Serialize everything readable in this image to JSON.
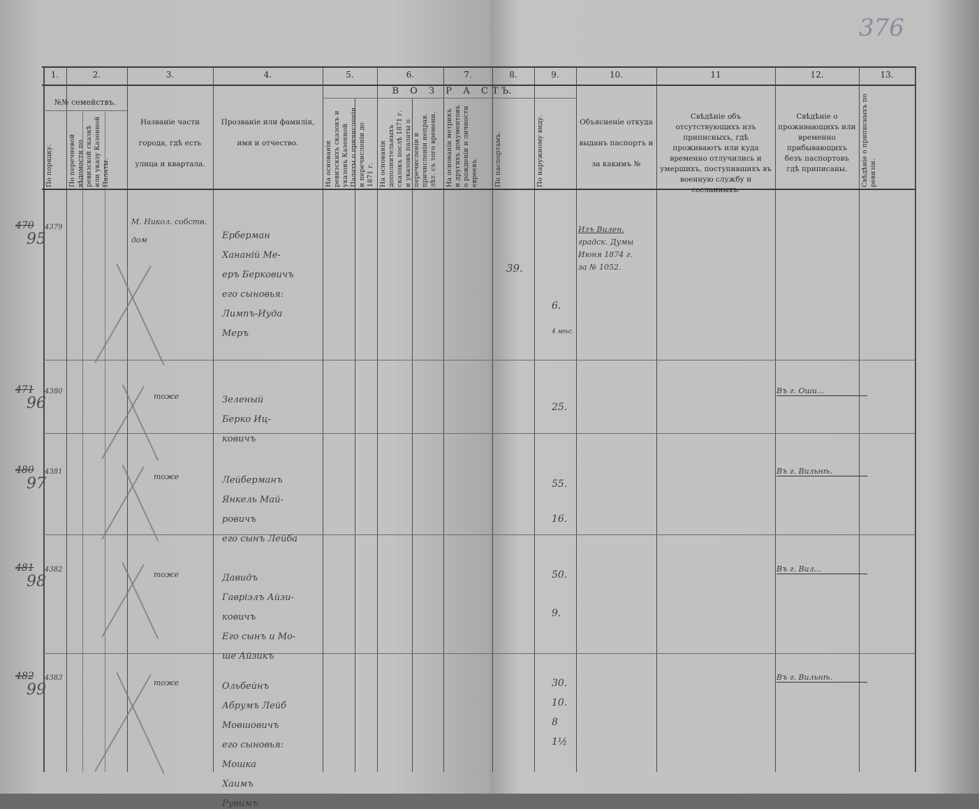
{
  "page_number": "376",
  "header": {
    "col_numbers": [
      "1.",
      "2.",
      "3.",
      "4.",
      "5.",
      "6.",
      "7.",
      "8.",
      "9.",
      "10.",
      "11",
      "12.",
      "13."
    ],
    "families_group": "№№ семействъ.",
    "age_group_left": "В О З Р А С",
    "age_group_right": "Т Ъ.",
    "col1": "По порядку.",
    "col2": "По перечневой вѣдомости по ревизской сказкѣ или указу Казенной Палаты.",
    "col3": "Названіе части города, гдѣ есть улица и квартала.",
    "col4": "Прозваніе или фамилія, имя и отчество.",
    "col5": "На основаніи ревизскихъ сказокъ и указовъ Казенной Палаты о причисленіи и перечисленіи до 1871 г.",
    "col6": "На основаніи дополнительныхъ сказокъ послѣ 1871 г. и указовъ палаты о перечисленіи и причисленіи неправ. лѣт. съ того времени.",
    "col7": "На основаніи метрикъ и другихъ документовъ о рожденіи и личности евреевъ.",
    "col8": "По паспортамъ.",
    "col9": "По наружному виду.",
    "col10": "Объясненіе откуда выданъ паспортъ и за какимъ №",
    "col11": "Свѣдѣніе объ отсутствующихъ изъ приписныхъ, гдѣ проживаютъ или куда временно отлучились и умершихъ, поступившихъ въ военную службу и сосланныхъ.",
    "col12": "Свѣдѣніе о проживающихъ или временно прибывающихъ безъ паспортовъ гдѣ приписаны.",
    "col13": "Свѣдѣніе о приписныхъ по ревизіи."
  },
  "rows": [
    {
      "family_no": "95",
      "old_no": "470",
      "list_no": "4379",
      "district": "М. Никол. собств. дом",
      "name_lines": [
        "Ерберман",
        "Хананій Ме-",
        "еръ Берковичъ",
        "его сыновья:",
        "Лимпъ-Иуда",
        "Меръ"
      ],
      "ages_passport": [
        "39."
      ],
      "ages_appearance": [
        "6.",
        "4 мѣс."
      ],
      "passport_note": [
        "Изъ Вилен.",
        "градск. Думы",
        "Июня 1874 г.",
        "за № 1052."
      ],
      "col12_note": ""
    },
    {
      "family_no": "96",
      "old_no": "471",
      "list_no": "4380",
      "district": "тоже",
      "name_lines": [
        "Зеленый",
        "Берко Иц-",
        "ковичъ"
      ],
      "ages_passport": [],
      "ages_appearance": [
        "25."
      ],
      "passport_note": [],
      "col12_note": "Въ г. Оши..."
    },
    {
      "family_no": "97",
      "old_no": "480",
      "list_no": "4381",
      "district": "тоже",
      "name_lines": [
        "Лейберманъ",
        "Янкель Май-",
        "ровичъ",
        "его сынъ Лейба"
      ],
      "ages_passport": [],
      "ages_appearance": [
        "55.",
        "16."
      ],
      "passport_note": [],
      "col12_note": "Въ г. Вильнѣ."
    },
    {
      "family_no": "98",
      "old_no": "481",
      "list_no": "4382",
      "district": "тоже",
      "name_lines": [
        "Давидъ",
        "Гавріэлъ Айзи-",
        "ковичъ",
        "Его сынъ и Мо-",
        "ше Айзикъ"
      ],
      "ages_passport": [],
      "ages_appearance": [
        "50.",
        "9."
      ],
      "passport_note": [],
      "col12_note": "Въ г. Вил..."
    },
    {
      "family_no": "99",
      "old_no": "482",
      "list_no": "4383",
      "district": "тоже",
      "name_lines": [
        "Ольбейнъ",
        "Абрумъ Лейб",
        "Мовшовичъ",
        "его сыновья:",
        "Мошка",
        "Хаимъ",
        "Рувимъ"
      ],
      "ages_passport": [],
      "ages_appearance": [
        "30.",
        "10.",
        "8",
        "1½"
      ],
      "passport_note": [],
      "col12_note": "Въ г. Вильнѣ."
    }
  ]
}
